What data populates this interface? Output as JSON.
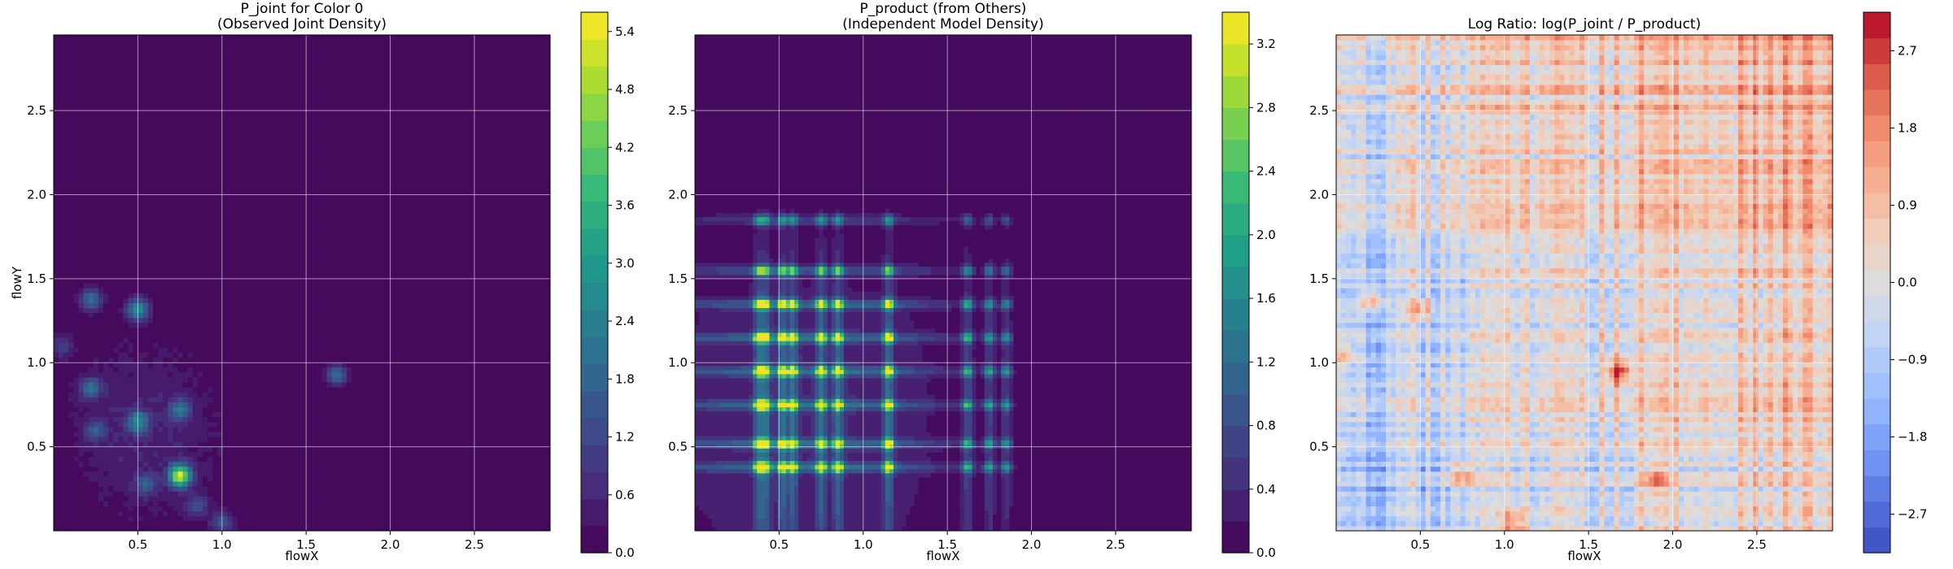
{
  "chart_data": [
    {
      "type": "heatmap",
      "title": "P_joint for Color 0",
      "subtitle": "(Observed Joint Density)",
      "xlabel": "flowX",
      "ylabel": "flowY",
      "xlim": [
        0,
        2.95
      ],
      "ylim": [
        0,
        2.95
      ],
      "xticks": [
        0.5,
        1.0,
        1.5,
        2.0,
        2.5
      ],
      "yticks": [
        0.5,
        1.0,
        1.5,
        2.0,
        2.5
      ],
      "grid": true,
      "colormap": "viridis",
      "colorbar": {
        "range": [
          0,
          5.6
        ],
        "ticks": [
          0.0,
          0.6,
          1.2,
          1.8,
          2.4,
          3.0,
          3.6,
          4.2,
          4.8,
          5.4
        ],
        "levels": 20
      },
      "peaks": [
        {
          "x": 0.75,
          "y": 0.33,
          "value": 5.0
        },
        {
          "x": 0.5,
          "y": 1.32,
          "value": 2.6
        },
        {
          "x": 0.5,
          "y": 0.65,
          "value": 2.3
        },
        {
          "x": 0.22,
          "y": 1.38,
          "value": 2.0
        },
        {
          "x": 1.68,
          "y": 0.93,
          "value": 1.9
        },
        {
          "x": 0.22,
          "y": 0.85,
          "value": 1.8
        },
        {
          "x": 0.75,
          "y": 0.72,
          "value": 1.8
        },
        {
          "x": 1.0,
          "y": 0.05,
          "value": 1.4
        },
        {
          "x": 0.55,
          "y": 0.28,
          "value": 1.4
        },
        {
          "x": 0.25,
          "y": 0.6,
          "value": 1.3
        },
        {
          "x": 0.85,
          "y": 0.15,
          "value": 1.2
        },
        {
          "x": 0.05,
          "y": 1.1,
          "value": 1.0
        }
      ]
    },
    {
      "type": "heatmap",
      "title": "P_product (from Others)",
      "subtitle": "(Independent Model Density)",
      "xlabel": "flowX",
      "ylabel": "",
      "xlim": [
        0,
        2.95
      ],
      "ylim": [
        0,
        2.95
      ],
      "xticks": [
        0.5,
        1.0,
        1.5,
        2.0,
        2.5
      ],
      "yticks": [
        0.5,
        1.0,
        1.5,
        2.0,
        2.5
      ],
      "grid": true,
      "colormap": "viridis",
      "colorbar": {
        "range": [
          0,
          3.4
        ],
        "ticks": [
          0.0,
          0.4,
          0.8,
          1.2,
          1.6,
          2.0,
          2.4,
          2.8,
          3.2
        ],
        "levels": 17
      },
      "x_marginal_peaks": [
        0.38,
        0.42,
        0.52,
        0.58,
        0.75,
        0.85,
        1.15,
        1.62,
        1.75,
        1.85
      ],
      "y_marginal_peaks": [
        0.38,
        0.52,
        0.75,
        0.95,
        1.15,
        1.35,
        1.55,
        1.85
      ],
      "max_value": 3.3
    },
    {
      "type": "heatmap",
      "title": "Log Ratio: log(P_joint / P_product)",
      "xlabel": "flowX",
      "ylabel": "",
      "xlim": [
        0,
        2.95
      ],
      "ylim": [
        0,
        2.95
      ],
      "xticks": [
        0.5,
        1.0,
        1.5,
        2.0,
        2.5
      ],
      "yticks": [
        0.5,
        1.0,
        1.5,
        2.0,
        2.5
      ],
      "grid": true,
      "colormap": "coolwarm",
      "colorbar": {
        "range": [
          -3.15,
          3.15
        ],
        "ticks": [
          -2.7,
          -1.8,
          -0.9,
          0.0,
          0.9,
          1.8,
          2.7
        ],
        "levels": 21
      },
      "hotspots": [
        {
          "x": 1.68,
          "y": 0.95,
          "value": 3.0
        },
        {
          "x": 0.22,
          "y": 1.38,
          "value": 2.2
        },
        {
          "x": 0.5,
          "y": 1.32,
          "value": 2.0
        },
        {
          "x": 0.75,
          "y": 0.33,
          "value": 2.0
        },
        {
          "x": 1.9,
          "y": 0.3,
          "value": 1.8
        },
        {
          "x": 1.05,
          "y": 0.05,
          "value": 2.0
        },
        {
          "x": 0.05,
          "y": 1.05,
          "value": 1.6
        }
      ]
    }
  ]
}
